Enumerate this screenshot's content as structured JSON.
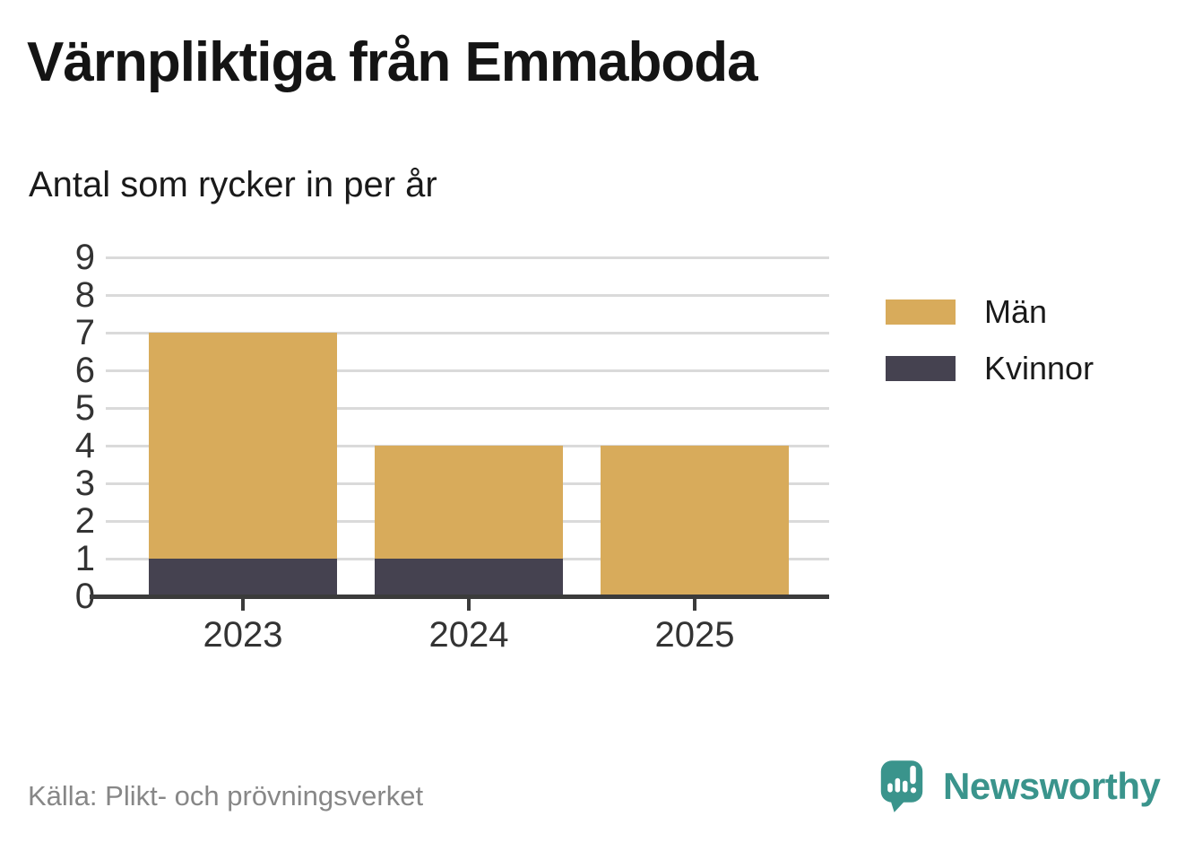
{
  "title": "Värnpliktiga från Emmaboda",
  "subtitle": "Antal som rycker in per år",
  "source": "Källa: Plikt- och prövningsverket",
  "brand": {
    "name": "Newsworthy",
    "color": "#3a948c",
    "icon": "newsworthy-speech-bubble-bar-chart-icon"
  },
  "colors": {
    "men": "#d8ab5b",
    "kvinnor": "#454250",
    "grid": "#dadada",
    "axis": "#3b3b3b",
    "tick_text": "#333333",
    "source_text": "#878787",
    "brand_teal": "#3a948c"
  },
  "chart_data": {
    "type": "bar",
    "stacked": true,
    "categories": [
      "2023",
      "2024",
      "2025"
    ],
    "series": [
      {
        "name": "Män",
        "color": "#d8ab5b",
        "values": [
          6,
          3,
          4
        ]
      },
      {
        "name": "Kvinnor",
        "color": "#454250",
        "values": [
          1,
          1,
          0
        ]
      }
    ],
    "stack_bottom_to_top": [
      "Kvinnor",
      "Män"
    ],
    "totals": [
      7,
      4,
      4
    ],
    "title": "Värnpliktiga från Emmaboda",
    "subtitle": "Antal som rycker in per år",
    "xlabel": "",
    "ylabel": "",
    "ylim": [
      0,
      9
    ],
    "yticks": [
      0,
      1,
      2,
      3,
      4,
      5,
      6,
      7,
      8,
      9
    ],
    "grid": true,
    "legend_position": "right"
  }
}
